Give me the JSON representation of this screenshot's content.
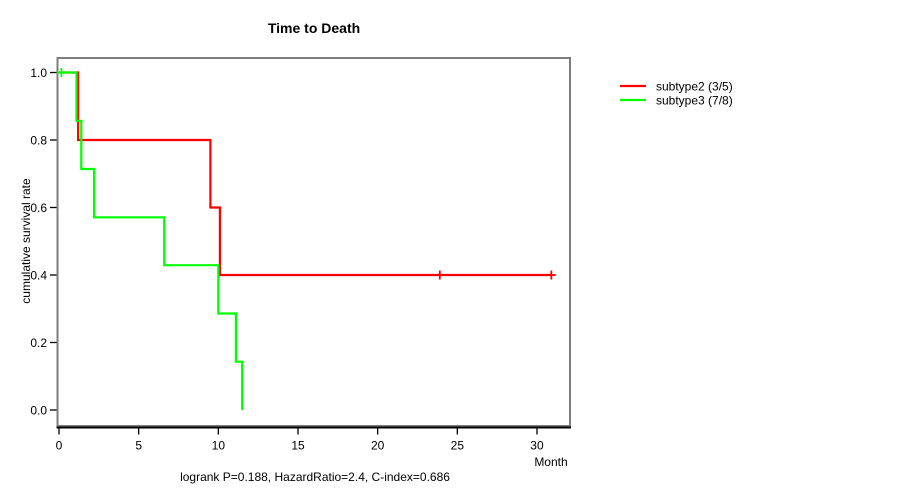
{
  "chart_data": {
    "type": "line",
    "variant": "kaplan-meier-step-survival",
    "title": "Time to Death",
    "xlabel": "Month",
    "ylabel": "cumulative survival rate",
    "annotation": "logrank P=0.188, HazardRatio=2.4, C-index=0.686",
    "xlim": [
      0,
      32.1
    ],
    "ylim": [
      0.0,
      1.0
    ],
    "x_ticks": [
      0,
      5,
      10,
      15,
      20,
      25,
      30
    ],
    "y_ticks": [
      1.0,
      0.8,
      0.6,
      0.4,
      0.2,
      0.0
    ],
    "grid": false,
    "legend_position": "outside-top-right",
    "axis_box_color": "#7d7d7d",
    "axis_line_color": "#000000",
    "series": [
      {
        "name": "subtype2 (3/5)",
        "color": "#ff0000",
        "n_events": 3,
        "n_total": 5,
        "points": [
          [
            0,
            1.0
          ],
          [
            1.2,
            1.0
          ],
          [
            1.2,
            0.8
          ],
          [
            9.5,
            0.8
          ],
          [
            9.5,
            0.6
          ],
          [
            10.1,
            0.6
          ],
          [
            10.1,
            0.4
          ],
          [
            30.9,
            0.4
          ]
        ],
        "censored": [
          [
            23.9,
            0.4
          ],
          [
            30.9,
            0.4
          ]
        ]
      },
      {
        "name": "subtype3 (7/8)",
        "color": "#00ff00",
        "n_events": 7,
        "n_total": 8,
        "points": [
          [
            0,
            1.0
          ],
          [
            1.1,
            1.0
          ],
          [
            1.1,
            0.857
          ],
          [
            1.4,
            0.857
          ],
          [
            1.4,
            0.714
          ],
          [
            2.2,
            0.714
          ],
          [
            2.2,
            0.571
          ],
          [
            6.6,
            0.571
          ],
          [
            6.6,
            0.429
          ],
          [
            10.0,
            0.429
          ],
          [
            10.0,
            0.286
          ],
          [
            11.1,
            0.286
          ],
          [
            11.1,
            0.143
          ],
          [
            11.5,
            0.143
          ],
          [
            11.5,
            0.0
          ]
        ],
        "censored": [
          [
            0.15,
            1.0
          ]
        ]
      }
    ]
  }
}
